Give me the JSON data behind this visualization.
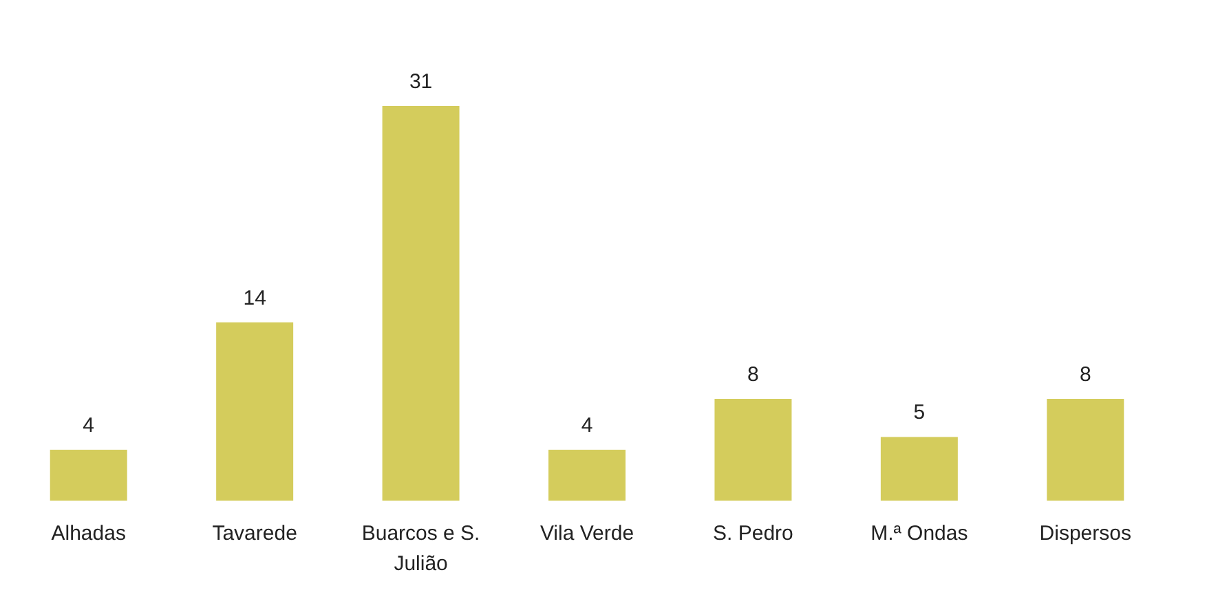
{
  "chart_data": {
    "type": "bar",
    "categories": [
      "Alhadas",
      "Tavarede",
      "Buarcos e S. Julião",
      "Vila Verde",
      "S. Pedro",
      "M.ª Ondas",
      "Dispersos"
    ],
    "values": [
      4,
      14,
      31,
      4,
      8,
      5,
      8
    ],
    "color": "#d4cc5c",
    "data_labels": true
  }
}
